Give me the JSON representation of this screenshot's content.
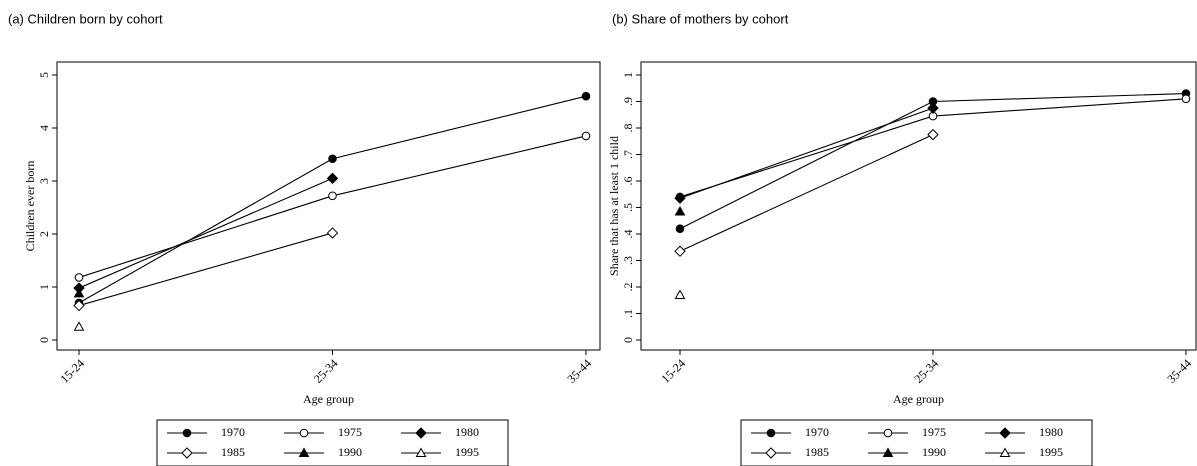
{
  "chart_data": [
    {
      "type": "line",
      "title": "(a) Children born by cohort",
      "x_label": "Age group",
      "y_label": "Children ever born",
      "categories": [
        "15-24",
        "25-34",
        "35-44"
      ],
      "ylim": [
        0,
        5
      ],
      "yticks": [
        0,
        1,
        2,
        3,
        4,
        5
      ],
      "series": [
        {
          "name": "1970",
          "color": "#000000",
          "marker": "circle",
          "filled": true,
          "values": [
            0.7,
            3.42,
            4.6
          ]
        },
        {
          "name": "1975",
          "color": "#000000",
          "marker": "circle",
          "filled": false,
          "values": [
            1.18,
            2.72,
            3.85
          ]
        },
        {
          "name": "1980",
          "color": "#000000",
          "marker": "diamond",
          "filled": true,
          "values": [
            0.98,
            3.05,
            null
          ]
        },
        {
          "name": "1985",
          "color": "#000000",
          "marker": "diamond",
          "filled": false,
          "values": [
            0.65,
            2.02,
            null
          ]
        },
        {
          "name": "1990",
          "color": "#000000",
          "marker": "triangle",
          "filled": true,
          "values": [
            0.88,
            null,
            null
          ]
        },
        {
          "name": "1995",
          "color": "#000000",
          "marker": "triangle",
          "filled": false,
          "values": [
            0.25,
            null,
            null
          ]
        }
      ]
    },
    {
      "type": "line",
      "title": "(b) Share of mothers by cohort",
      "x_label": "Age group",
      "y_label": "Share that has at least 1 child",
      "categories": [
        "15-24",
        "25-34",
        "35-44"
      ],
      "ylim": [
        0,
        1
      ],
      "yticks": [
        0,
        {
          "value": 0.1,
          "label": ".1"
        },
        {
          "value": 0.2,
          "label": ".2"
        },
        {
          "value": 0.3,
          "label": ".3"
        },
        {
          "value": 0.4,
          "label": ".4"
        },
        {
          "value": 0.5,
          "label": ".5"
        },
        {
          "value": 0.6,
          "label": ".6"
        },
        {
          "value": 0.7,
          "label": ".7"
        },
        {
          "value": 0.8,
          "label": ".8"
        },
        {
          "value": 0.9,
          "label": ".9"
        },
        1
      ],
      "series": [
        {
          "name": "1970",
          "color": "#000000",
          "marker": "circle",
          "filled": true,
          "values": [
            0.42,
            0.9,
            0.93
          ]
        },
        {
          "name": "1975",
          "color": "#000000",
          "marker": "circle",
          "filled": false,
          "values": [
            0.54,
            0.845,
            0.91
          ]
        },
        {
          "name": "1980",
          "color": "#000000",
          "marker": "diamond",
          "filled": true,
          "values": [
            0.535,
            0.875,
            null
          ]
        },
        {
          "name": "1985",
          "color": "#000000",
          "marker": "diamond",
          "filled": false,
          "values": [
            0.335,
            0.775,
            null
          ]
        },
        {
          "name": "1990",
          "color": "#000000",
          "marker": "triangle",
          "filled": true,
          "values": [
            0.485,
            null,
            null
          ]
        },
        {
          "name": "1995",
          "color": "#000000",
          "marker": "triangle",
          "filled": false,
          "values": [
            0.17,
            null,
            null
          ]
        }
      ]
    }
  ]
}
